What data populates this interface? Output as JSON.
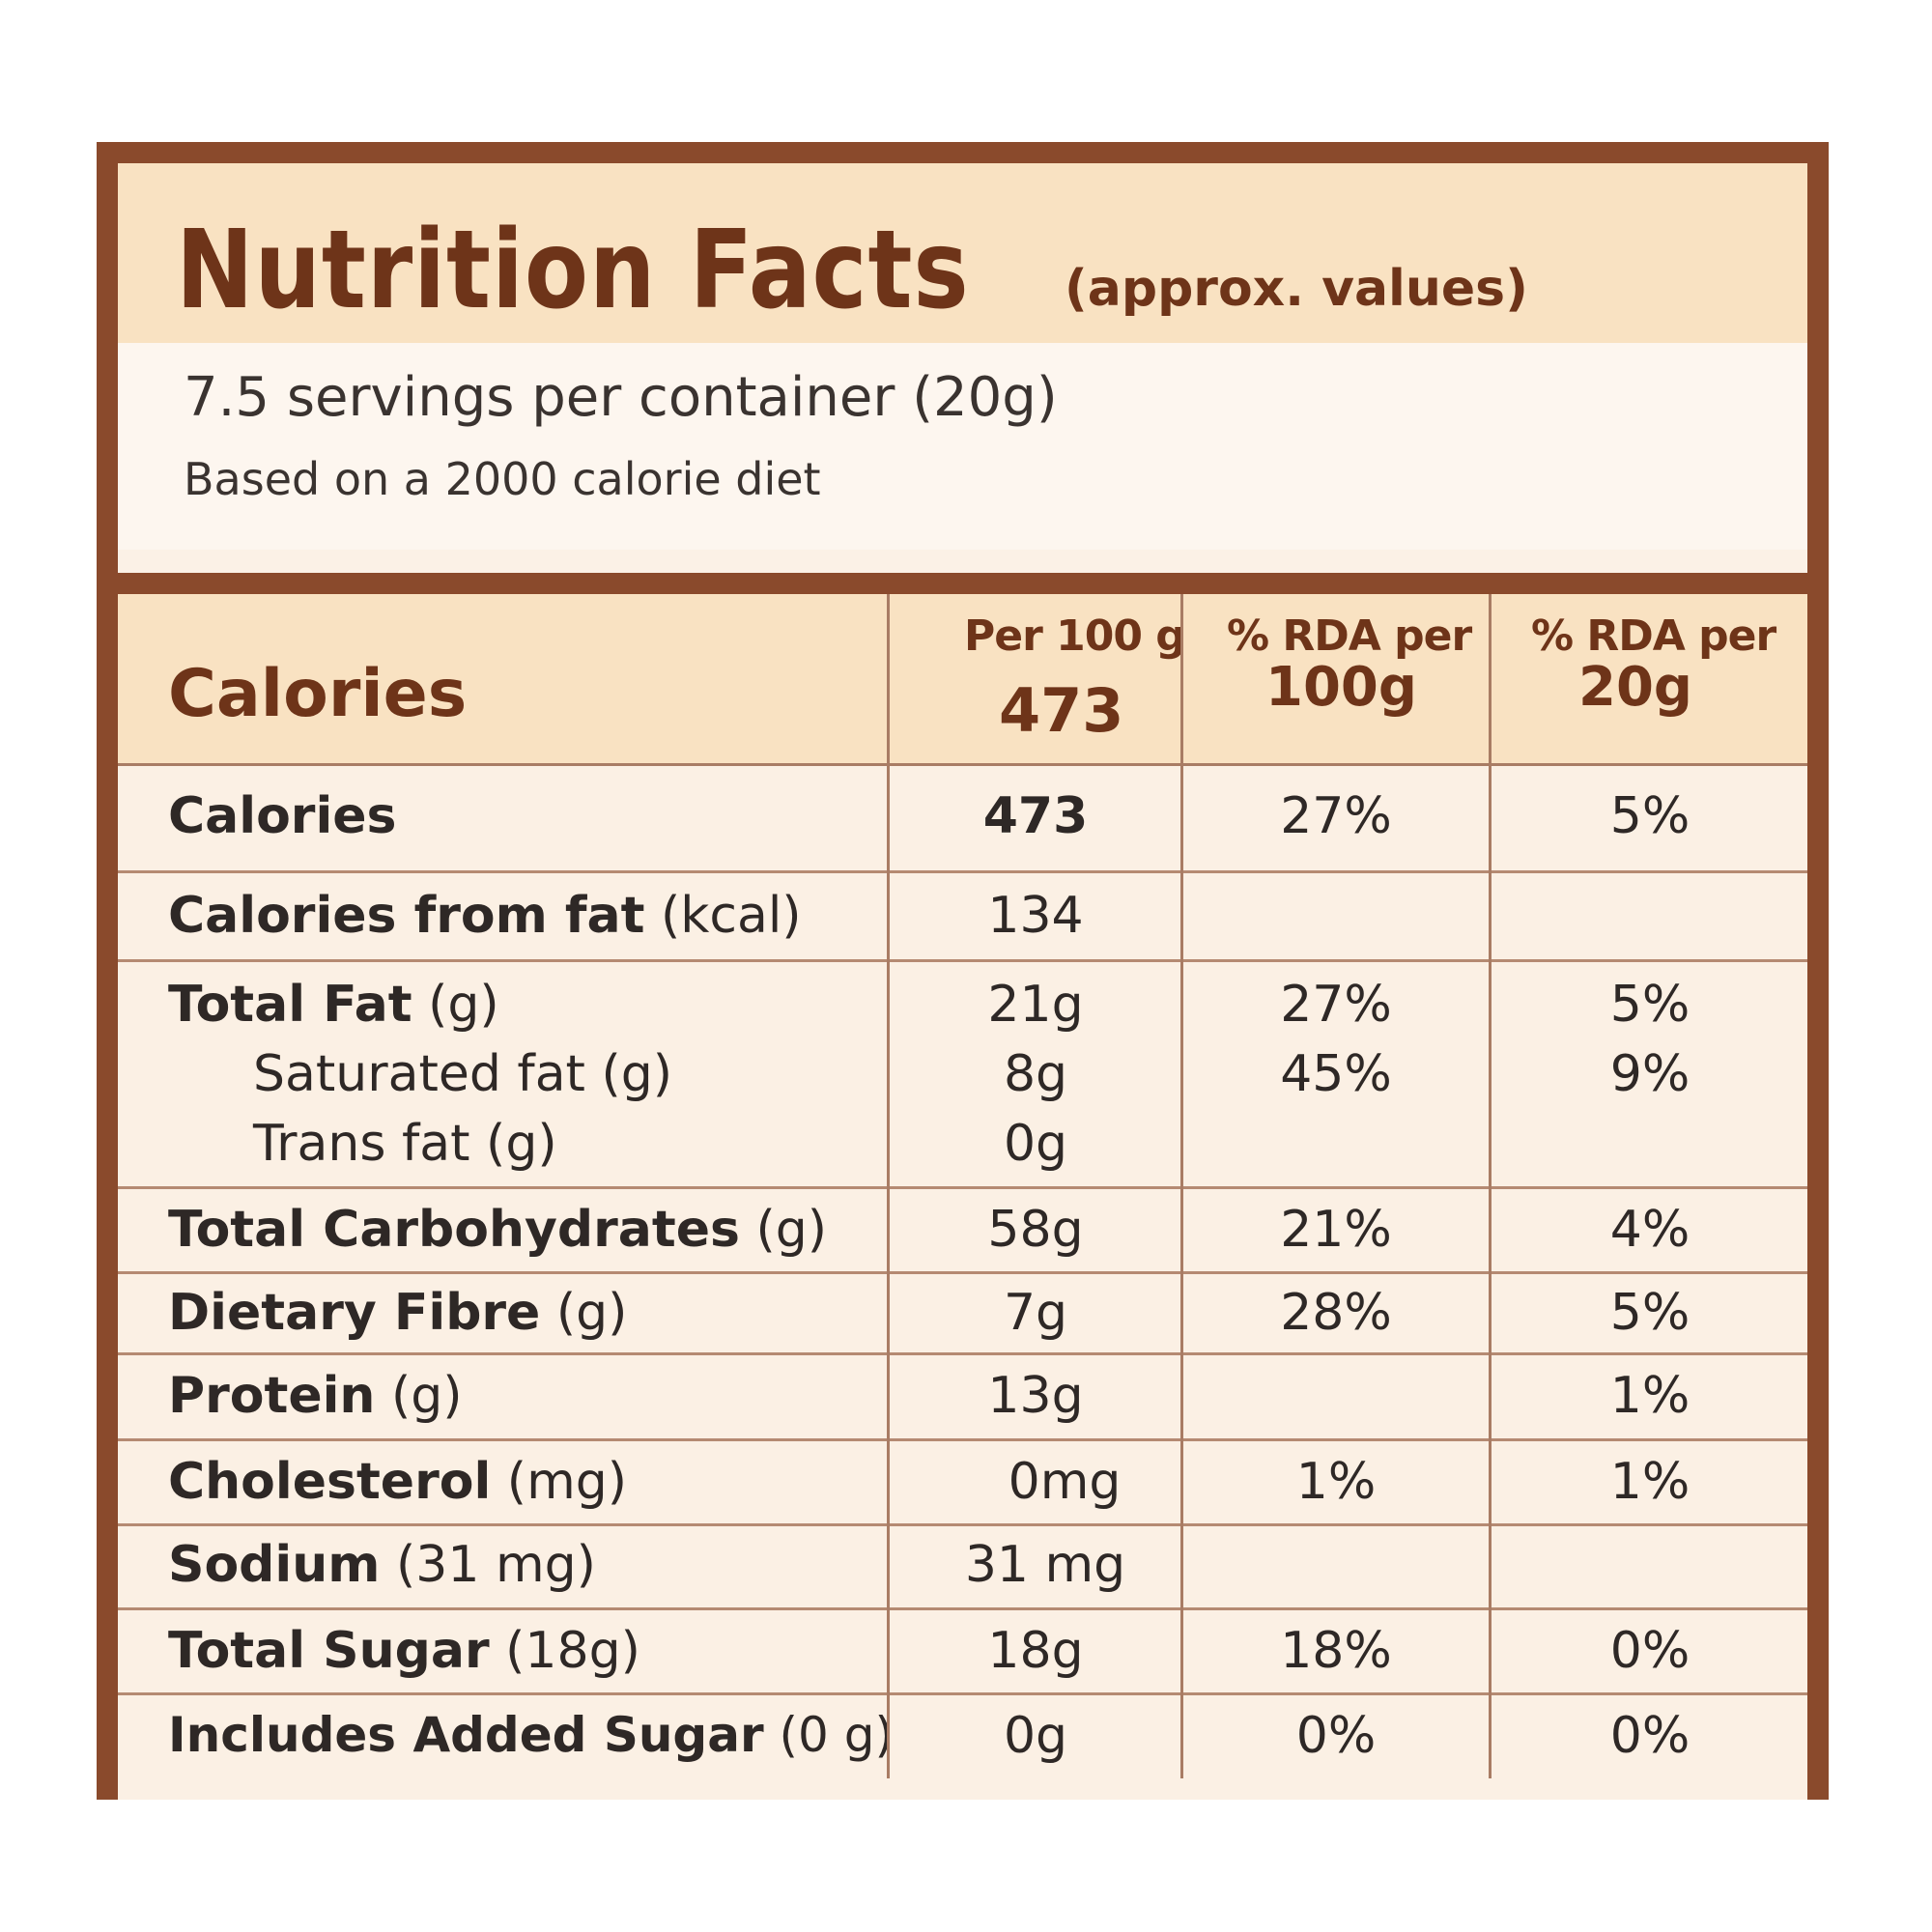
{
  "title": "Nutrition Facts",
  "subtitle": "(approx. values)",
  "servings": "7.5 servings per container (20g)",
  "diet_note": "Based on a 2000 calorie diet",
  "header": {
    "name": "Calories",
    "col1_top": "Per 100 g",
    "col1_bottom": "473",
    "col2_top": "% RDA per",
    "col2_bottom": "100g",
    "col3_top": "% RDA per",
    "col3_bottom": "20g"
  },
  "rows": [
    {
      "name": "Calories",
      "unit": "",
      "per100": "473",
      "rda100": "27%",
      "rda20": "5%"
    },
    {
      "name": "Calories from fat",
      "unit": " (kcal)",
      "per100": "134",
      "rda100": "",
      "rda20": ""
    },
    {
      "name": "Total Fat",
      "unit": " (g)",
      "per100": "21g",
      "rda100": "27%",
      "rda20": "5%"
    },
    {
      "name": "Saturated fat (g)",
      "unit": "",
      "per100": "8g",
      "rda100": "45%",
      "rda20": "9%"
    },
    {
      "name": "Trans fat (g)",
      "unit": "",
      "per100": "0g",
      "rda100": "",
      "rda20": ""
    },
    {
      "name": "Total Carbohydrates",
      "unit": " (g)",
      "per100": "58g",
      "rda100": "21%",
      "rda20": "4%"
    },
    {
      "name": "Dietary Fibre",
      "unit": " (g)",
      "per100": "7g",
      "rda100": "28%",
      "rda20": "5%"
    },
    {
      "name": "Protein",
      "unit": " (g)",
      "per100": "13g",
      "rda100": "",
      "rda20": "1%"
    },
    {
      "name": "Cholesterol",
      "unit": " (mg)",
      "per100": "0mg",
      "rda100": "1%",
      "rda20": "1%"
    },
    {
      "name": "Sodium",
      "unit": " (31 mg)",
      "per100": "31 mg",
      "rda100": "",
      "rda20": ""
    },
    {
      "name": "Total Sugar",
      "unit": " (18g)",
      "per100": "18g",
      "rda100": "18%",
      "rda20": "0%"
    },
    {
      "name": "Includes Added Sugar",
      "unit": " (0 g)",
      "per100": "0g",
      "rda100": "0%",
      "rda20": "0%"
    }
  ],
  "colors": {
    "border": "#8a4a2c",
    "title_band": "#f9e2c2",
    "body": "#fbf0e4",
    "title_text": "#6e3419"
  }
}
